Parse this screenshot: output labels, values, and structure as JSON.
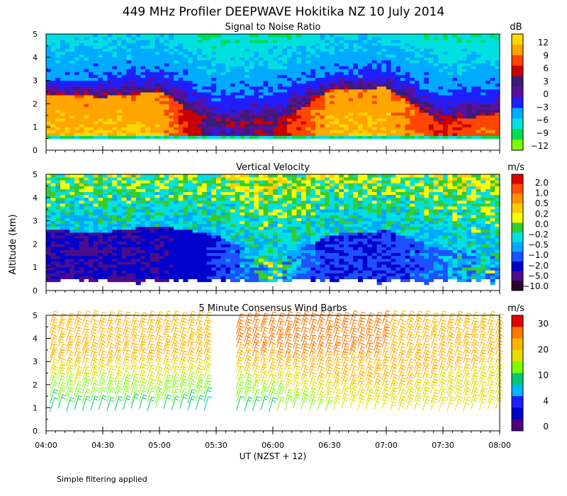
{
  "figure": {
    "title": "449 MHz Profiler DEEPWAVE Hokitika NZ 10 July 2014",
    "ylabel": "Altitude (km)",
    "xlabel": "UT  (NZST + 12)",
    "footnote": "Simple filtering applied"
  },
  "chart_data": [
    {
      "type": "heatmap",
      "title": "Signal to Noise Ratio",
      "x_ticks": [
        "04:00",
        "04:30",
        "05:00",
        "05:30",
        "06:00",
        "06:30",
        "07:00",
        "07:30",
        "08:00"
      ],
      "y_ticks": [
        "0",
        "1",
        "2",
        "3",
        "4",
        "5"
      ],
      "ylim": [
        0,
        5
      ],
      "colorbar": {
        "unit": "dB",
        "labels": [
          "12",
          "9",
          "6",
          "3",
          "0",
          "−3",
          "−6",
          "−9",
          "−12"
        ],
        "colors": [
          "#ffd700",
          "#ffa500",
          "#ff4500",
          "#c80000",
          "#3c1a7a",
          "#5a0f9c",
          "#1e1eff",
          "#00aaff",
          "#00e0e0",
          "#00dc50",
          "#7cfc00"
        ]
      },
      "profile": [
        {
          "time": "04:00",
          "top_km": 3.0,
          "core_km": 2.4,
          "core_db": 12
        },
        {
          "time": "04:30",
          "top_km": 3.2,
          "core_km": 2.3,
          "core_db": 12
        },
        {
          "time": "05:00",
          "top_km": 3.4,
          "core_km": 2.5,
          "core_db": 12
        },
        {
          "time": "05:30",
          "top_km": 2.4,
          "core_km": 1.0,
          "core_db": 0
        },
        {
          "time": "06:00",
          "top_km": 2.6,
          "core_km": 1.1,
          "core_db": 3
        },
        {
          "time": "06:30",
          "top_km": 3.3,
          "core_km": 2.6,
          "core_db": 12
        },
        {
          "time": "07:00",
          "top_km": 3.4,
          "core_km": 2.7,
          "core_db": 12
        },
        {
          "time": "07:30",
          "top_km": 2.5,
          "core_km": 1.2,
          "core_db": 6
        },
        {
          "time": "08:00",
          "top_km": 2.7,
          "core_km": 1.6,
          "core_db": 9
        }
      ]
    },
    {
      "type": "heatmap",
      "title": "Vertical Velocity",
      "x_ticks": [
        "04:00",
        "04:30",
        "05:00",
        "05:30",
        "06:00",
        "06:30",
        "07:00",
        "07:30",
        "08:00"
      ],
      "y_ticks": [
        "0",
        "1",
        "2",
        "3",
        "4",
        "5"
      ],
      "ylim": [
        0,
        5
      ],
      "colorbar": {
        "unit": "m/s",
        "labels": [
          "2.0",
          "1.0",
          "0.5",
          "0.2",
          "0.0",
          "−0.2",
          "−0.5",
          "−1.0",
          "−2.0",
          "−5.0",
          "−10.0"
        ],
        "colors": [
          "#e00000",
          "#ff5000",
          "#ff9000",
          "#ffcc00",
          "#ffff00",
          "#32cd32",
          "#00e0e0",
          "#00aaff",
          "#1e50ff",
          "#0000cd",
          "#4b0d8c",
          "#2a0030"
        ]
      },
      "profile": [
        {
          "time": "04:00",
          "low_top_km": 2.6,
          "low_ms": -5.0
        },
        {
          "time": "04:30",
          "low_top_km": 2.5,
          "low_ms": -5.0
        },
        {
          "time": "05:00",
          "low_top_km": 2.8,
          "low_ms": -5.0
        },
        {
          "time": "05:30",
          "low_top_km": 2.4,
          "low_ms": -2.0
        },
        {
          "time": "06:00",
          "low_top_km": 1.2,
          "low_ms": -0.2
        },
        {
          "time": "06:30",
          "low_top_km": 2.4,
          "low_ms": -2.0
        },
        {
          "time": "07:00",
          "low_top_km": 2.6,
          "low_ms": -2.0
        },
        {
          "time": "07:30",
          "low_top_km": 1.8,
          "low_ms": -1.0
        },
        {
          "time": "08:00",
          "low_top_km": 1.6,
          "low_ms": -0.5
        }
      ]
    },
    {
      "type": "scatter",
      "title": "5 Minute Consensus Wind Barbs",
      "x_ticks": [
        "04:00",
        "04:30",
        "05:00",
        "05:30",
        "06:00",
        "06:30",
        "07:00",
        "07:30",
        "08:00"
      ],
      "y_ticks": [
        "0",
        "1",
        "2",
        "3",
        "4",
        "5"
      ],
      "ylim": [
        0,
        5
      ],
      "colorbar": {
        "unit": "m/s",
        "labels": [
          "30",
          "20",
          "10",
          "4",
          "0"
        ],
        "colors": [
          "#e00000",
          "#ff7800",
          "#ffb400",
          "#e6dc00",
          "#7cfc00",
          "#00c870",
          "#00b4ff",
          "#1e1eff",
          "#0000cd",
          "#4b0082"
        ]
      },
      "profile": [
        {
          "time": "04:00",
          "speed_low_ms": 8,
          "speed_high_ms": 25
        },
        {
          "time": "04:30",
          "speed_low_ms": 8,
          "speed_high_ms": 24
        },
        {
          "time": "05:00",
          "speed_low_ms": 10,
          "speed_high_ms": 23
        },
        {
          "time": "05:30",
          "speed_low_ms": 6,
          "speed_high_ms": 25
        },
        {
          "time": "06:00",
          "speed_low_ms": 10,
          "speed_high_ms": 26
        },
        {
          "time": "06:30",
          "speed_low_ms": 15,
          "speed_high_ms": 27
        },
        {
          "time": "07:00",
          "speed_low_ms": 18,
          "speed_high_ms": 25
        },
        {
          "time": "07:30",
          "speed_low_ms": 17,
          "speed_high_ms": 22
        },
        {
          "time": "08:00",
          "speed_low_ms": 16,
          "speed_high_ms": 21
        }
      ]
    }
  ]
}
